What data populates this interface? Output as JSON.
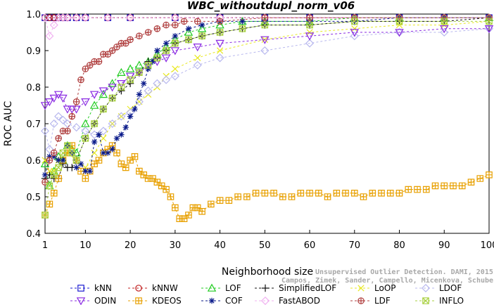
{
  "chart_data": {
    "type": "line",
    "title": "WBC_withoutdupl_norm_v06",
    "xlabel": "Neighborhood size",
    "ylabel": "ROC AUC",
    "xlim": [
      1,
      100
    ],
    "ylim": [
      0.4,
      1.0
    ],
    "xticks": [
      1,
      10,
      20,
      30,
      40,
      50,
      60,
      70,
      80,
      90,
      100
    ],
    "yticks": [
      0.4,
      0.5,
      0.6,
      0.7,
      0.8,
      0.9,
      1.0
    ],
    "grid": false,
    "legend_position": "bottom",
    "watermark": [
      "Unsupervised Outlier Detection. DAMI, 2015.",
      "Campos, Zimek, Sander, Campello, Micenkova, Schubert, Assent, Houle"
    ],
    "series": [
      {
        "name": "kNN",
        "color": "#1a1ad0",
        "marker": "square",
        "x": [
          1,
          2,
          3,
          4,
          5,
          6,
          8,
          10,
          15,
          20,
          30,
          40,
          50,
          60,
          70,
          80,
          90,
          100
        ],
        "values": [
          0.99,
          0.99,
          0.99,
          0.99,
          0.99,
          0.99,
          0.99,
          0.99,
          0.99,
          0.99,
          0.99,
          0.99,
          0.99,
          0.99,
          0.99,
          0.99,
          0.99,
          0.99
        ]
      },
      {
        "name": "kNNW",
        "color": "#c02020",
        "marker": "circle",
        "x": [
          1,
          2,
          3,
          4,
          5,
          6,
          8,
          10,
          15,
          20,
          30,
          40,
          50,
          60,
          70,
          80,
          90,
          100
        ],
        "values": [
          0.99,
          0.99,
          0.99,
          0.99,
          0.99,
          0.99,
          0.99,
          0.99,
          0.99,
          0.99,
          0.99,
          0.99,
          0.99,
          0.99,
          0.99,
          0.99,
          0.99,
          0.99
        ]
      },
      {
        "name": "LOF",
        "color": "#22cc22",
        "marker": "triangle-up",
        "x": [
          1,
          2,
          3,
          4,
          5,
          6,
          7,
          8,
          10,
          12,
          14,
          16,
          18,
          20,
          22,
          24,
          26,
          28,
          30,
          33,
          36,
          40,
          45,
          50,
          60,
          70,
          80,
          90,
          100
        ],
        "values": [
          0.59,
          0.53,
          0.57,
          0.61,
          0.6,
          0.64,
          0.63,
          0.62,
          0.7,
          0.75,
          0.78,
          0.81,
          0.84,
          0.85,
          0.86,
          0.87,
          0.89,
          0.91,
          0.93,
          0.95,
          0.96,
          0.97,
          0.98,
          0.98,
          0.98,
          0.99,
          0.99,
          0.99,
          0.99
        ]
      },
      {
        "name": "SimplifiedLOF",
        "color": "#111111",
        "marker": "plus",
        "x": [
          1,
          2,
          3,
          4,
          5,
          6,
          7,
          8,
          10,
          12,
          14,
          16,
          18,
          20,
          22,
          24,
          26,
          28,
          30,
          33,
          36,
          40,
          45,
          50,
          60,
          70,
          80,
          90,
          100
        ],
        "values": [
          0.55,
          0.56,
          0.55,
          0.55,
          0.59,
          0.58,
          0.58,
          0.6,
          0.66,
          0.7,
          0.74,
          0.77,
          0.79,
          0.81,
          0.84,
          0.87,
          0.88,
          0.9,
          0.92,
          0.93,
          0.94,
          0.95,
          0.96,
          0.97,
          0.97,
          0.98,
          0.98,
          0.98,
          0.99
        ]
      },
      {
        "name": "LoOP",
        "color": "#e8e820",
        "marker": "x",
        "x": [
          1,
          2,
          3,
          4,
          5,
          6,
          8,
          10,
          12,
          14,
          16,
          18,
          20,
          22,
          24,
          26,
          28,
          30,
          35,
          40,
          50,
          60,
          70,
          80,
          90,
          100
        ],
        "values": [
          0.6,
          0.57,
          0.57,
          0.6,
          0.6,
          0.62,
          0.6,
          0.58,
          0.62,
          0.66,
          0.7,
          0.72,
          0.74,
          0.76,
          0.78,
          0.8,
          0.83,
          0.85,
          0.88,
          0.9,
          0.93,
          0.95,
          0.96,
          0.97,
          0.97,
          0.98
        ]
      },
      {
        "name": "LDOF",
        "color": "#b8b8ee",
        "marker": "diamond",
        "x": [
          1,
          2,
          3,
          4,
          5,
          6,
          8,
          10,
          12,
          14,
          16,
          18,
          20,
          22,
          24,
          26,
          28,
          30,
          35,
          40,
          50,
          60,
          70,
          80,
          90,
          100
        ],
        "values": [
          0.68,
          0.63,
          0.7,
          0.72,
          0.71,
          0.7,
          0.69,
          0.68,
          0.67,
          0.68,
          0.7,
          0.72,
          0.73,
          0.76,
          0.79,
          0.81,
          0.82,
          0.83,
          0.86,
          0.88,
          0.9,
          0.92,
          0.94,
          0.95,
          0.95,
          0.96
        ]
      },
      {
        "name": "ODIN",
        "color": "#8a2be2",
        "marker": "triangle-down",
        "x": [
          1,
          2,
          3,
          4,
          5,
          6,
          7,
          8,
          10,
          12,
          14,
          16,
          18,
          20,
          22,
          24,
          26,
          28,
          30,
          35,
          40,
          50,
          60,
          70,
          80,
          90,
          100
        ],
        "values": [
          0.75,
          0.76,
          0.77,
          0.78,
          0.77,
          0.74,
          0.74,
          0.74,
          0.76,
          0.78,
          0.79,
          0.8,
          0.81,
          0.83,
          0.84,
          0.86,
          0.87,
          0.88,
          0.9,
          0.91,
          0.92,
          0.93,
          0.94,
          0.95,
          0.95,
          0.96,
          0.96
        ]
      },
      {
        "name": "KDEOS",
        "color": "#e8a000",
        "marker": "boxcross",
        "x": [
          1,
          2,
          3,
          4,
          5,
          6,
          7,
          8,
          9,
          10,
          11,
          12,
          13,
          14,
          15,
          16,
          17,
          18,
          19,
          20,
          21,
          22,
          23,
          24,
          25,
          26,
          27,
          28,
          29,
          30,
          31,
          32,
          33,
          34,
          35,
          36,
          38,
          40,
          42,
          44,
          46,
          48,
          50,
          52,
          54,
          56,
          58,
          60,
          62,
          64,
          66,
          68,
          70,
          72,
          74,
          76,
          78,
          80,
          82,
          84,
          86,
          88,
          90,
          92,
          94,
          96,
          98,
          100
        ],
        "values": [
          0.45,
          0.48,
          0.51,
          0.55,
          0.6,
          0.62,
          0.64,
          0.6,
          0.57,
          0.55,
          0.57,
          0.59,
          0.6,
          0.62,
          0.63,
          0.64,
          0.62,
          0.59,
          0.58,
          0.6,
          0.61,
          0.57,
          0.56,
          0.55,
          0.55,
          0.54,
          0.53,
          0.52,
          0.5,
          0.47,
          0.44,
          0.44,
          0.45,
          0.47,
          0.47,
          0.46,
          0.48,
          0.49,
          0.49,
          0.5,
          0.5,
          0.51,
          0.51,
          0.51,
          0.5,
          0.5,
          0.51,
          0.51,
          0.51,
          0.5,
          0.51,
          0.51,
          0.51,
          0.5,
          0.51,
          0.51,
          0.51,
          0.51,
          0.52,
          0.52,
          0.52,
          0.53,
          0.53,
          0.53,
          0.53,
          0.54,
          0.55,
          0.56
        ]
      },
      {
        "name": "COF",
        "color": "#0a1a8a",
        "marker": "asterisk",
        "x": [
          1,
          2,
          3,
          4,
          5,
          6,
          7,
          8,
          9,
          10,
          11,
          12,
          13,
          14,
          15,
          16,
          17,
          18,
          19,
          20,
          21,
          22,
          23,
          24,
          25,
          26,
          28,
          30,
          33,
          36,
          40,
          45,
          50,
          60,
          70,
          80,
          90,
          100
        ],
        "values": [
          0.56,
          0.61,
          0.61,
          0.6,
          0.6,
          0.64,
          0.62,
          0.58,
          0.59,
          0.57,
          0.57,
          0.65,
          0.67,
          0.62,
          0.62,
          0.63,
          0.66,
          0.67,
          0.69,
          0.72,
          0.74,
          0.78,
          0.81,
          0.85,
          0.87,
          0.9,
          0.92,
          0.94,
          0.96,
          0.97,
          0.98,
          0.98,
          0.98,
          0.98,
          0.98,
          0.99,
          0.99,
          0.99
        ]
      },
      {
        "name": "FastABOD",
        "color": "#f0b0f0",
        "marker": "diamond",
        "x": [
          1,
          2,
          3,
          4,
          5,
          6,
          8,
          10,
          15,
          20,
          30,
          40,
          50,
          60,
          70,
          80,
          90,
          100
        ],
        "values": [
          0.99,
          0.94,
          0.97,
          0.99,
          0.99,
          0.99,
          0.99,
          0.99,
          0.99,
          0.99,
          0.99,
          0.99,
          0.99,
          0.99,
          0.99,
          0.99,
          0.99,
          0.99
        ]
      },
      {
        "name": "LDF",
        "color": "#b04040",
        "marker": "circle-plus",
        "x": [
          1,
          2,
          3,
          4,
          5,
          6,
          7,
          8,
          9,
          10,
          11,
          12,
          13,
          14,
          15,
          16,
          17,
          18,
          19,
          20,
          22,
          24,
          26,
          28,
          30,
          32,
          35,
          40,
          50,
          60,
          70,
          80,
          90,
          100
        ],
        "values": [
          0.54,
          0.6,
          0.62,
          0.66,
          0.68,
          0.68,
          0.72,
          0.76,
          0.82,
          0.85,
          0.86,
          0.87,
          0.87,
          0.89,
          0.89,
          0.9,
          0.91,
          0.92,
          0.92,
          0.93,
          0.94,
          0.95,
          0.96,
          0.97,
          0.97,
          0.98,
          0.98,
          0.98,
          0.99,
          0.99,
          0.99,
          0.99,
          0.99,
          0.99
        ]
      },
      {
        "name": "INFLO",
        "color": "#a8d040",
        "marker": "boxx",
        "x": [
          1,
          2,
          3,
          4,
          5,
          6,
          7,
          8,
          10,
          12,
          14,
          16,
          18,
          20,
          22,
          24,
          26,
          28,
          30,
          33,
          36,
          40,
          45,
          50,
          60,
          70,
          80,
          90,
          100
        ],
        "values": [
          0.45,
          0.53,
          0.56,
          0.58,
          0.62,
          0.64,
          0.62,
          0.6,
          0.66,
          0.7,
          0.74,
          0.77,
          0.8,
          0.82,
          0.84,
          0.86,
          0.88,
          0.9,
          0.92,
          0.93,
          0.94,
          0.95,
          0.96,
          0.97,
          0.97,
          0.98,
          0.98,
          0.98,
          0.98
        ]
      }
    ]
  }
}
